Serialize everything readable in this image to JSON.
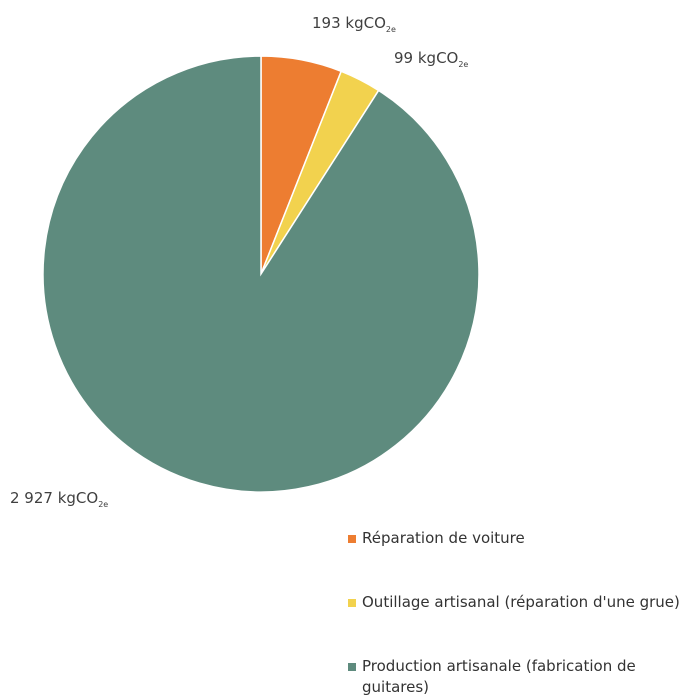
{
  "chart_data": {
    "type": "pie",
    "unit": "kgCO",
    "unit_subscript": "2e",
    "slices": [
      {
        "name": "Réparation de voiture",
        "value": 193,
        "display": "193 kgCO",
        "color": "#ED7D31"
      },
      {
        "name": "Outillage artisanal (réparation d'une grue)",
        "value": 99,
        "display": "99 kgCO",
        "color": "#F2D24E"
      },
      {
        "name": "Production artisanale (fabrication de guitares)",
        "value": 2927,
        "display": "2 927 kgCO",
        "color": "#5E8B7E"
      }
    ],
    "legend_position": "bottom-right"
  }
}
